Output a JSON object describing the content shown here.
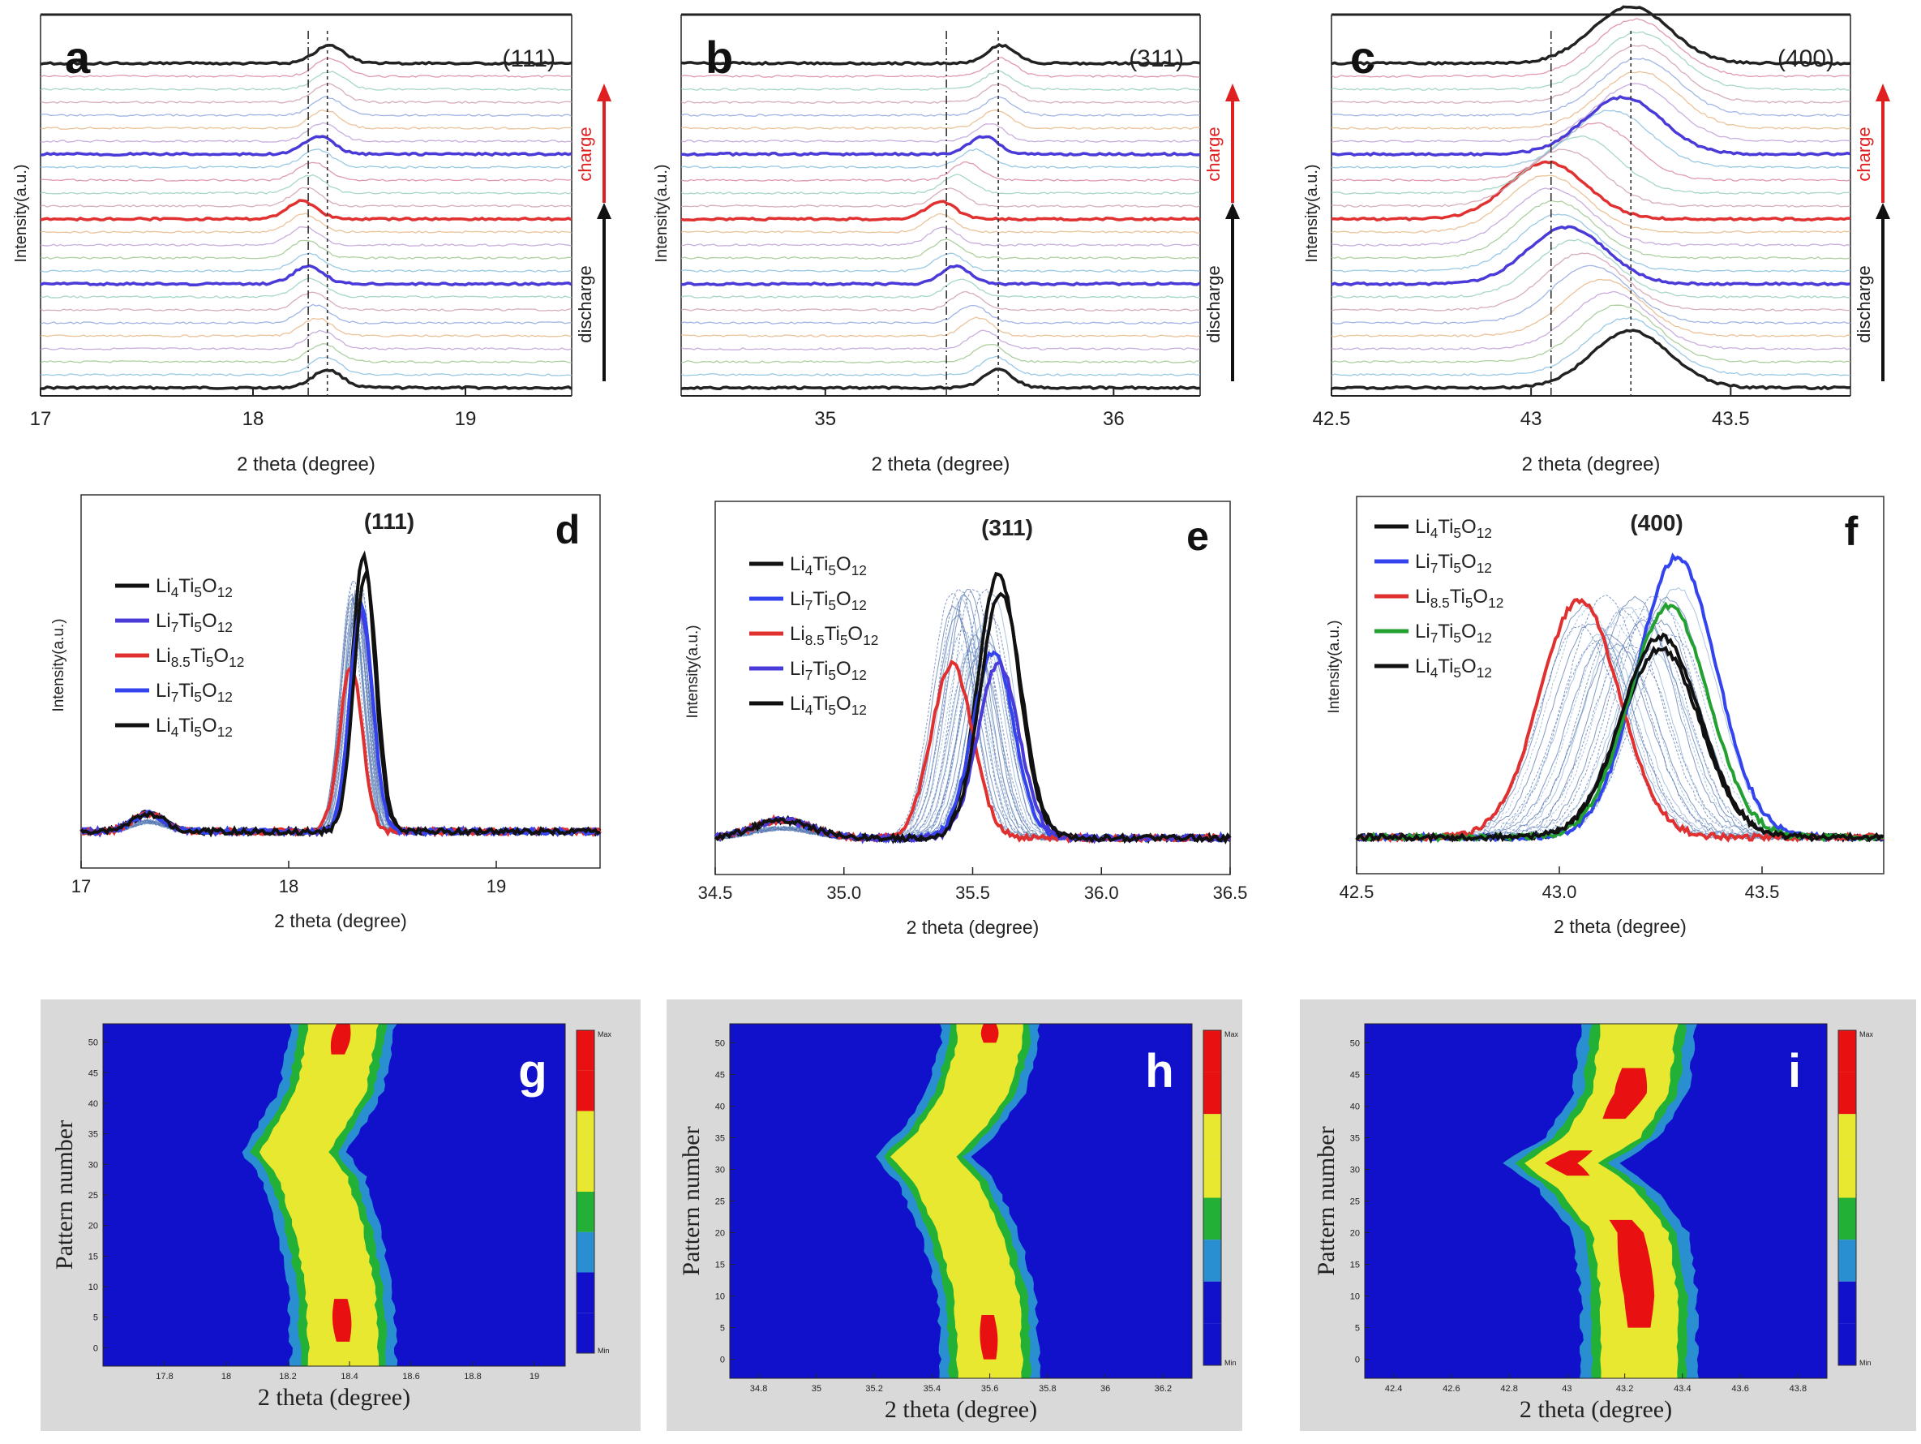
{
  "figure": {
    "panel_letters": [
      "a",
      "b",
      "c",
      "d",
      "e",
      "f",
      "g",
      "h",
      "i"
    ]
  },
  "chart_data": [
    {
      "panel": "a",
      "type": "line",
      "title": "(111)",
      "xlabel": "2 theta (degree)",
      "ylabel": "Intensity(a.u.)",
      "xlim": [
        17,
        19.5
      ],
      "xticks": [
        17,
        18,
        19
      ],
      "peak_ref": [
        18.26,
        18.35
      ],
      "stack": {
        "count": 26,
        "peaks": [
          18.35,
          18.34,
          18.33,
          18.32,
          18.3,
          18.29,
          18.28,
          18.27,
          18.26,
          18.26,
          18.25,
          18.24,
          18.24,
          18.23,
          18.25,
          18.27,
          18.28,
          18.3,
          18.31,
          18.33,
          18.34,
          18.35,
          18.35,
          18.36,
          18.36,
          18.36
        ]
      },
      "highlight": [
        {
          "name": "Li4Ti5O12",
          "index": 0,
          "color": "#222222"
        },
        {
          "name": "Li7Ti5O12",
          "index": 8,
          "color": "#4a3ad8"
        },
        {
          "name": "Li8.5Ti5O12",
          "index": 13,
          "color": "#e03030"
        },
        {
          "name": "Li7Ti5O12",
          "index": 18,
          "color": "#4a3ad8"
        },
        {
          "name": "Li4Ti5O12",
          "index": 25,
          "color": "#222222"
        }
      ],
      "side_labels": {
        "charge": "charge",
        "discharge": "discharge"
      }
    },
    {
      "panel": "b",
      "type": "line",
      "title": "(311)",
      "xlabel": "2 theta (degree)",
      "ylabel": "Intensity(a.u.)",
      "xlim": [
        34.5,
        36.3
      ],
      "xticks": [
        35,
        36
      ],
      "peak_ref": [
        35.42,
        35.6
      ],
      "stack": {
        "count": 26,
        "peaks": [
          35.6,
          35.59,
          35.57,
          35.55,
          35.53,
          35.51,
          35.49,
          35.47,
          35.45,
          35.43,
          35.42,
          35.41,
          35.4,
          35.4,
          35.43,
          35.46,
          35.49,
          35.52,
          35.55,
          35.57,
          35.59,
          35.6,
          35.6,
          35.6,
          35.61,
          35.61
        ]
      },
      "highlight": [
        {
          "name": "Li4Ti5O12",
          "index": 0,
          "color": "#222222"
        },
        {
          "name": "Li7Ti5O12",
          "index": 8,
          "color": "#4a3ad8"
        },
        {
          "name": "Li8.5Ti5O12",
          "index": 13,
          "color": "#e03030"
        },
        {
          "name": "Li7Ti5O12",
          "index": 18,
          "color": "#4a3ad8"
        },
        {
          "name": "Li4Ti5O12",
          "index": 25,
          "color": "#222222"
        }
      ],
      "side_labels": {
        "charge": "charge",
        "discharge": "discharge"
      }
    },
    {
      "panel": "c",
      "type": "line",
      "title": "(400)",
      "xlabel": "2 theta (degree)",
      "ylabel": "Intensity(a.u.)",
      "xlim": [
        42.5,
        43.8
      ],
      "xticks": [
        42.5,
        43.0,
        43.5
      ],
      "peak_ref": [
        43.05,
        43.25
      ],
      "stack": {
        "count": 26,
        "peaks": [
          43.25,
          43.24,
          43.22,
          43.2,
          43.18,
          43.15,
          43.13,
          43.11,
          43.09,
          43.07,
          43.06,
          43.05,
          43.04,
          43.04,
          43.08,
          43.12,
          43.16,
          43.2,
          43.23,
          43.26,
          43.27,
          43.27,
          43.27,
          43.27,
          43.26,
          43.25
        ]
      },
      "highlight": [
        {
          "name": "Li4Ti5O12",
          "index": 0,
          "color": "#222222"
        },
        {
          "name": "Li7Ti5O12",
          "index": 8,
          "color": "#4a3ad8"
        },
        {
          "name": "Li8.5Ti5O12",
          "index": 13,
          "color": "#e03030"
        },
        {
          "name": "Li7Ti5O12",
          "index": 18,
          "color": "#4a3ad8"
        },
        {
          "name": "Li4Ti5O12",
          "index": 25,
          "color": "#222222"
        }
      ],
      "side_labels": {
        "charge": "charge",
        "discharge": "discharge"
      }
    },
    {
      "panel": "d",
      "type": "line",
      "title": "(111)",
      "xlabel": "2 theta (degree)",
      "ylabel": "Intensity(a.u.)",
      "xlim": [
        17,
        19.5
      ],
      "xticks": [
        17,
        18,
        19
      ],
      "series": [
        {
          "name": "Li4Ti5O12",
          "peak": 18.36,
          "height": 0.92,
          "color": "#111111"
        },
        {
          "name": "Li7Ti5O12",
          "peak": 18.35,
          "height": 0.72,
          "color": "#4a3ad8"
        },
        {
          "name": "Li8.5Ti5O12",
          "peak": 18.3,
          "height": 0.55,
          "color": "#e03030"
        },
        {
          "name": "Li7Ti5O12",
          "peak": 18.35,
          "height": 0.75,
          "color": "#3344ee"
        },
        {
          "name": "Li4Ti5O12",
          "peak": 18.37,
          "height": 0.86,
          "color": "#111111"
        }
      ],
      "legend": "upper-left"
    },
    {
      "panel": "e",
      "type": "line",
      "title": "(311)",
      "xlabel": "2 theta (degree)",
      "ylabel": "Intensity(a.u.)",
      "xlim": [
        34.5,
        36.5
      ],
      "xticks": [
        34.5,
        35.0,
        35.5,
        36.0,
        36.5
      ],
      "series": [
        {
          "name": "Li4Ti5O12",
          "peak": 35.6,
          "height": 0.88,
          "color": "#111111"
        },
        {
          "name": "Li7Ti5O12",
          "peak": 35.58,
          "height": 0.62,
          "color": "#3344ee"
        },
        {
          "name": "Li8.5Ti5O12",
          "peak": 35.42,
          "height": 0.58,
          "color": "#e03030"
        },
        {
          "name": "Li7Ti5O12",
          "peak": 35.6,
          "height": 0.58,
          "color": "#4a3ad8"
        },
        {
          "name": "Li4Ti5O12",
          "peak": 35.61,
          "height": 0.82,
          "color": "#111111"
        }
      ],
      "legend": "upper-left"
    },
    {
      "panel": "f",
      "type": "line",
      "title": "(400)",
      "xlabel": "2 theta (degree)",
      "ylabel": "Intensity(a.u.)",
      "xlim": [
        42.5,
        43.8
      ],
      "xticks": [
        42.5,
        43.0,
        43.5
      ],
      "series": [
        {
          "name": "Li4Ti5O12",
          "peak": 43.25,
          "height": 0.62,
          "color": "#111111"
        },
        {
          "name": "Li7Ti5O12",
          "peak": 43.29,
          "height": 0.92,
          "color": "#3344ee"
        },
        {
          "name": "Li8.5Ti5O12",
          "peak": 43.05,
          "height": 0.78,
          "color": "#e03030"
        },
        {
          "name": "Li7Ti5O12",
          "peak": 43.27,
          "height": 0.76,
          "color": "#22a030"
        },
        {
          "name": "Li4Ti5O12",
          "peak": 43.25,
          "height": 0.66,
          "color": "#111111"
        }
      ],
      "legend": "upper-left"
    },
    {
      "panel": "g",
      "type": "heatmap",
      "xlabel": "2 theta (degree)",
      "ylabel": "Pattern number",
      "xticks": [
        "17.8",
        "18",
        "18.2",
        "18.4",
        "18.6",
        "18.8",
        "19"
      ],
      "xlim": [
        17.6,
        19.1
      ],
      "yticks": [
        "0",
        "5",
        "10",
        "15",
        "20",
        "25",
        "30",
        "35",
        "40",
        "45",
        "50"
      ],
      "ylim": [
        -3,
        53
      ],
      "center": [
        [
          0,
          18.38
        ],
        [
          10,
          18.37
        ],
        [
          20,
          18.33
        ],
        [
          28,
          18.28
        ],
        [
          32,
          18.22
        ],
        [
          36,
          18.27
        ],
        [
          42,
          18.34
        ],
        [
          50,
          18.37
        ],
        [
          53,
          18.38
        ]
      ],
      "half_width": 0.17,
      "colors": [
        "#1111cc",
        "#2a8fd0",
        "#22b036",
        "#e8e830",
        "#e81010"
      ],
      "cbar_label_top": "Max",
      "cbar_label_bottom": "Min"
    },
    {
      "panel": "h",
      "type": "heatmap",
      "xlabel": "2 theta (degree)",
      "ylabel": "Pattern number",
      "xticks": [
        "34.8",
        "35",
        "35.2",
        "35.4",
        "35.6",
        "35.8",
        "36",
        "36.2"
      ],
      "xlim": [
        34.7,
        36.3
      ],
      "yticks": [
        "0",
        "5",
        "10",
        "15",
        "20",
        "25",
        "30",
        "35",
        "40",
        "45",
        "50"
      ],
      "ylim": [
        -3,
        53
      ],
      "center": [
        [
          0,
          35.6
        ],
        [
          10,
          35.59
        ],
        [
          20,
          35.53
        ],
        [
          28,
          35.45
        ],
        [
          32,
          35.37
        ],
        [
          36,
          35.46
        ],
        [
          42,
          35.55
        ],
        [
          50,
          35.6
        ],
        [
          53,
          35.6
        ]
      ],
      "half_width": 0.17,
      "colors": [
        "#1111cc",
        "#2a8fd0",
        "#22b036",
        "#e8e830",
        "#e81010"
      ],
      "cbar_label_top": "Max",
      "cbar_label_bottom": "Min"
    },
    {
      "panel": "i",
      "type": "heatmap",
      "xlabel": "2 theta (degree)",
      "ylabel": "Pattern number",
      "xticks": [
        "42.4",
        "42.6",
        "42.8",
        "43",
        "43.2",
        "43.4",
        "43.6",
        "43.8"
      ],
      "xlim": [
        42.3,
        43.9
      ],
      "yticks": [
        "0",
        "5",
        "10",
        "15",
        "20",
        "25",
        "30",
        "35",
        "40",
        "45",
        "50"
      ],
      "ylim": [
        -3,
        53
      ],
      "center": [
        [
          0,
          43.25
        ],
        [
          10,
          43.25
        ],
        [
          20,
          43.22
        ],
        [
          27,
          43.1
        ],
        [
          31,
          42.98
        ],
        [
          35,
          43.12
        ],
        [
          42,
          43.22
        ],
        [
          50,
          43.24
        ],
        [
          53,
          43.25
        ]
      ],
      "half_width": 0.2,
      "colors": [
        "#1111cc",
        "#2a8fd0",
        "#22b036",
        "#e8e830",
        "#e81010"
      ],
      "cbar_label_top": "Max",
      "cbar_label_bottom": "Min"
    }
  ]
}
